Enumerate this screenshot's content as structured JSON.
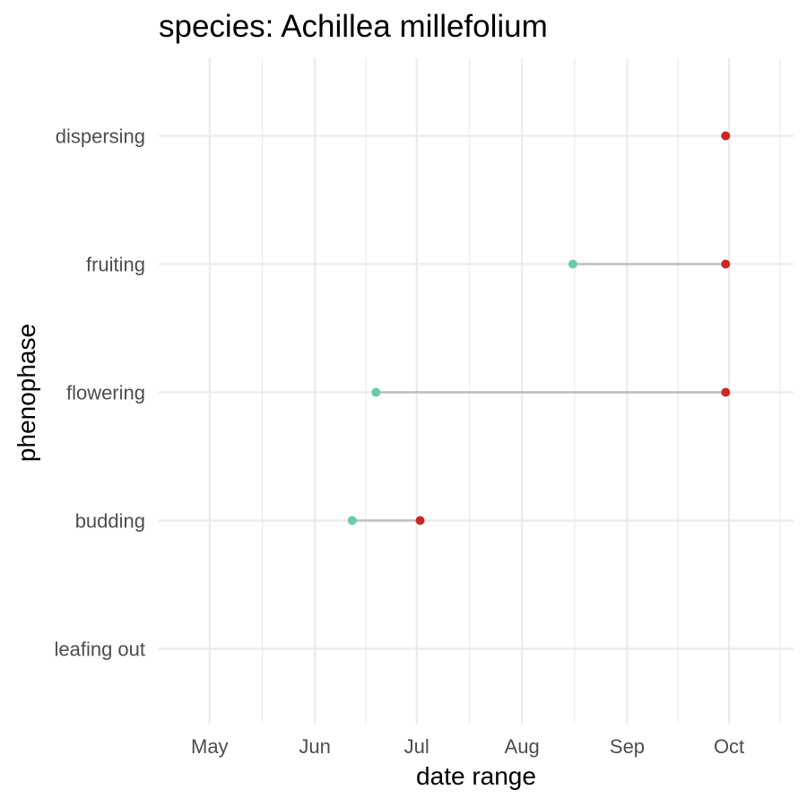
{
  "chart_data": {
    "type": "dumbbell",
    "title": "species: Achillea millefolium",
    "xlabel": "date range",
    "ylabel": "phenophase",
    "x_ticks": [
      "May",
      "Jun",
      "Jul",
      "Aug",
      "Sep",
      "Oct"
    ],
    "x_tick_dates": [
      "2000-05-01",
      "2000-06-01",
      "2000-07-01",
      "2000-08-01",
      "2000-09-01",
      "2000-10-01"
    ],
    "xlim": [
      "2000-04-16",
      "2000-10-20"
    ],
    "categories": [
      "leafing out",
      "budding",
      "flowering",
      "fruiting",
      "dispersing"
    ],
    "series": [
      {
        "category": "leafing out",
        "start": null,
        "end": null
      },
      {
        "category": "budding",
        "start": "2000-06-12",
        "end": "2000-07-02"
      },
      {
        "category": "flowering",
        "start": "2000-06-19",
        "end": "2000-09-30"
      },
      {
        "category": "fruiting",
        "start": "2000-08-16",
        "end": "2000-09-30"
      },
      {
        "category": "dispersing",
        "start": null,
        "end": "2000-09-30"
      }
    ],
    "grid": true,
    "legend": "none",
    "colors": {
      "start": "#66cdaa",
      "end": "#cd2626",
      "segment": "#bebebe",
      "grid": "#ebebeb"
    }
  }
}
